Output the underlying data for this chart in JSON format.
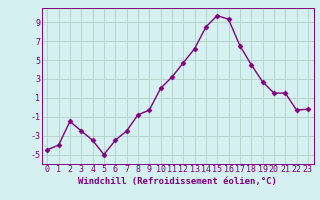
{
  "x": [
    0,
    1,
    2,
    3,
    4,
    5,
    6,
    7,
    8,
    9,
    10,
    11,
    12,
    13,
    14,
    15,
    16,
    17,
    18,
    19,
    20,
    21,
    22,
    23
  ],
  "y": [
    -4.5,
    -4.0,
    -1.5,
    -2.5,
    -3.5,
    -5.0,
    -3.5,
    -2.5,
    -0.8,
    -0.3,
    2.0,
    3.2,
    4.7,
    6.2,
    8.5,
    9.7,
    9.3,
    6.5,
    4.5,
    2.7,
    1.5,
    1.5,
    -0.3,
    -0.2
  ],
  "line_color": "#800080",
  "marker_color": "#800080",
  "bg_color": "#d5f0f0",
  "grid_color": "#b0d0c8",
  "xlabel": "Windchill (Refroidissement éolien,°C)",
  "ylabel": "",
  "title": "",
  "xlim": [
    -0.5,
    23.5
  ],
  "ylim": [
    -6,
    10.5
  ],
  "yticks": [
    -5,
    -3,
    -1,
    1,
    3,
    5,
    7,
    9
  ],
  "xticks": [
    0,
    1,
    2,
    3,
    4,
    5,
    6,
    7,
    8,
    9,
    10,
    11,
    12,
    13,
    14,
    15,
    16,
    17,
    18,
    19,
    20,
    21,
    22,
    23
  ],
  "xlabel_fontsize": 6.5,
  "tick_fontsize": 6,
  "marker": "D",
  "marker_size": 2.5,
  "linewidth": 1.0
}
